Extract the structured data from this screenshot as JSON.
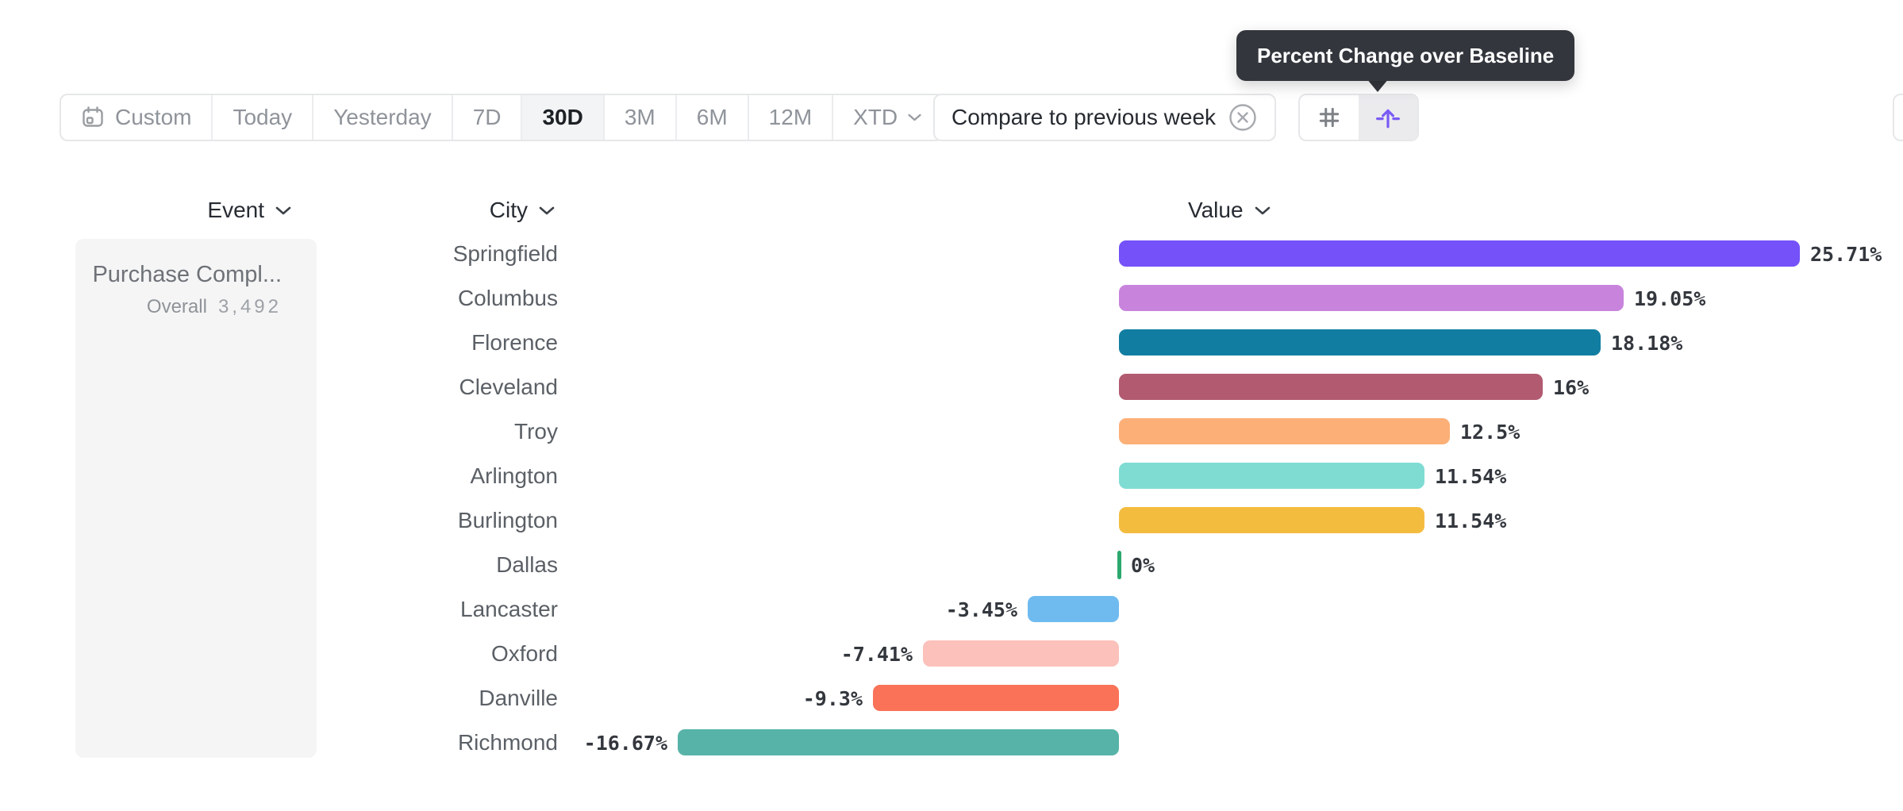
{
  "tooltip": {
    "text": "Percent Change over Baseline"
  },
  "toolbar": {
    "date_ranges": [
      {
        "label": "Custom",
        "icon": "calendar-icon",
        "selected": false,
        "has_chevron": false
      },
      {
        "label": "Today",
        "selected": false,
        "has_chevron": false
      },
      {
        "label": "Yesterday",
        "selected": false,
        "has_chevron": false
      },
      {
        "label": "7D",
        "selected": false,
        "has_chevron": false
      },
      {
        "label": "30D",
        "selected": true,
        "has_chevron": false
      },
      {
        "label": "3M",
        "selected": false,
        "has_chevron": false
      },
      {
        "label": "6M",
        "selected": false,
        "has_chevron": false
      },
      {
        "label": "12M",
        "selected": false,
        "has_chevron": false
      },
      {
        "label": "XTD",
        "selected": false,
        "has_chevron": true
      }
    ],
    "compare": {
      "label": "Compare to previous week"
    },
    "view_toggles": [
      {
        "icon": "hash-grid-icon",
        "selected": false
      },
      {
        "icon": "baseline-arrow-icon",
        "selected": true
      }
    ]
  },
  "columns": {
    "event_label": "Event",
    "city_label": "City",
    "value_label": "Value"
  },
  "event_panel": {
    "event_name": "Purchase Compl...",
    "overall_label": "Overall",
    "overall_value": "3,492"
  },
  "chart_data": {
    "type": "bar",
    "orientation": "horizontal",
    "title": "Percent Change over Baseline",
    "unit": "percent",
    "baseline_value": 0,
    "categories": [
      "Springfield",
      "Columbus",
      "Florence",
      "Cleveland",
      "Troy",
      "Arlington",
      "Burlington",
      "Dallas",
      "Lancaster",
      "Oxford",
      "Danville",
      "Richmond"
    ],
    "values": [
      25.71,
      19.05,
      18.18,
      16,
      12.5,
      11.54,
      11.54,
      0,
      -3.45,
      -7.41,
      -9.3,
      -16.67
    ],
    "value_labels": [
      "25.71%",
      "19.05%",
      "18.18%",
      "16%",
      "12.5%",
      "11.54%",
      "11.54%",
      "0%",
      "-3.45%",
      "-7.41%",
      "-9.3%",
      "-16.67%"
    ],
    "bar_colors": [
      "#7451f8",
      "#c884dc",
      "#117ea1",
      "#b25a70",
      "#fcb077",
      "#7fdcd3",
      "#f4bc3f",
      "#2ca86e",
      "#6fbbf0",
      "#fbc1ba",
      "#fa7257",
      "#57b3a8"
    ],
    "zero_marker_color": "#2ca86e",
    "axis_max": 25.71,
    "axis_min": -16.67,
    "grid": false,
    "legend": false
  }
}
